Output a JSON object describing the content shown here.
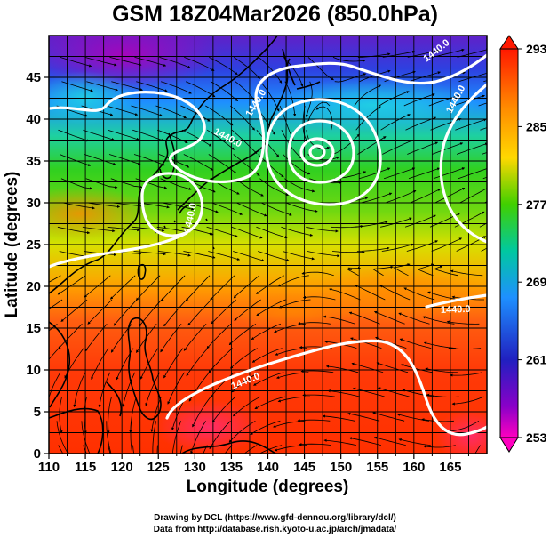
{
  "title": "GSM 18Z04Mar2026 (850.0hPa)",
  "x_axis": {
    "label": "Longitude (degrees)",
    "ticks": [
      "110",
      "115",
      "120",
      "125",
      "130",
      "135",
      "140",
      "145",
      "150",
      "155",
      "160",
      "165"
    ],
    "range": [
      110,
      170
    ]
  },
  "y_axis": {
    "label": "Latitude  (degrees)",
    "ticks": [
      "0",
      "5",
      "10",
      "15",
      "20",
      "25",
      "30",
      "35",
      "40",
      "45"
    ],
    "range": [
      0,
      50
    ]
  },
  "colorbar": {
    "labels": [
      "293",
      "285",
      "277",
      "269",
      "261",
      "253"
    ],
    "range": [
      253,
      293
    ]
  },
  "contour_labels": [
    "1440.0",
    "1440.0",
    "1440.0",
    "1440.0",
    "1440.0",
    "1440.0",
    "1440.0"
  ],
  "credits": {
    "line1": "Drawing by DCL (https://www.gfd-dennou.org/library/dcl/)",
    "line2": "Data from http://database.rish.kyoto-u.ac.jp/arch/jmadata/"
  },
  "colors": {
    "hot": "#ff2e00",
    "warm": "#ff9400",
    "mid": "#16c800",
    "cool": "#1e9cff",
    "cold": "#2a18c8",
    "coldest": "#b800c0"
  }
}
